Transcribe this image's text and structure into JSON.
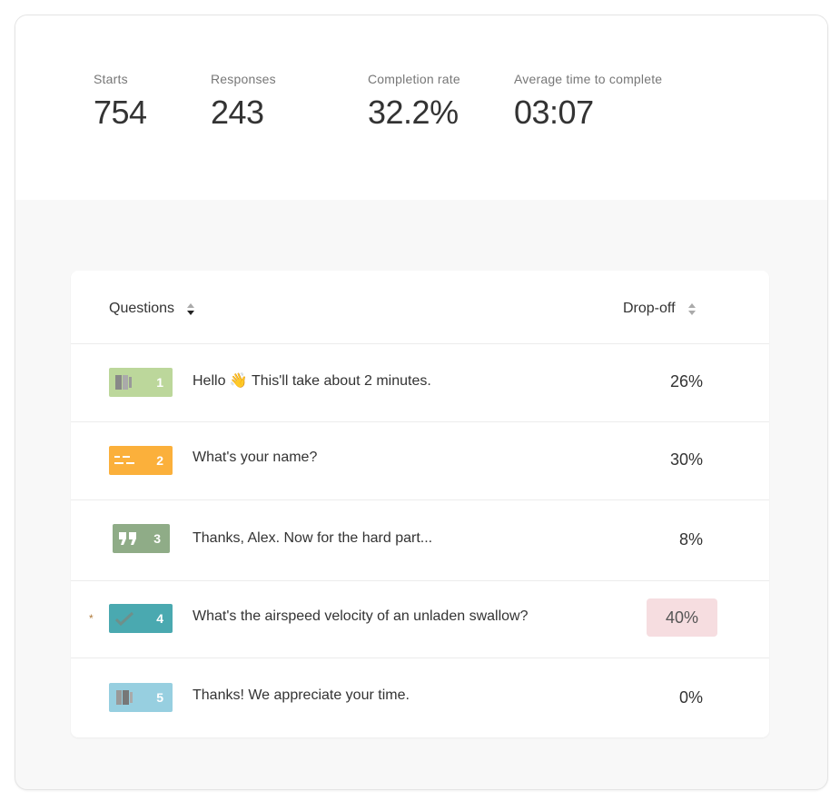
{
  "stats": {
    "starts": {
      "label": "Starts",
      "value": "754"
    },
    "responses": {
      "label": "Responses",
      "value": "243"
    },
    "completion_rate": {
      "label": "Completion rate",
      "value": "32.2%"
    },
    "avg_time": {
      "label": "Average time to complete",
      "value": "03:07"
    }
  },
  "table": {
    "col_questions": "Questions",
    "col_dropoff": "Drop-off",
    "rows": [
      {
        "num": "1",
        "text": "Hello 👋  This'll take about 2 minutes.",
        "dropoff": "26%",
        "badge_color": "#bcd79b",
        "icon": "welcome-screen-icon"
      },
      {
        "num": "2",
        "text": "What's your name?",
        "dropoff": "30%",
        "badge_color": "#fbb03b",
        "icon": "short-text-icon"
      },
      {
        "num": "3",
        "text": "Thanks, Alex. Now for the hard part...",
        "dropoff": "8%",
        "badge_color": "#8fac87",
        "icon": "quote-icon"
      },
      {
        "num": "4",
        "text": "What's the airspeed velocity of an unladen swallow?",
        "dropoff": "40%",
        "badge_color": "#4aa9b0",
        "icon": "checkmark-icon",
        "required_marker": "*",
        "highlight_color": "#f6dde0"
      },
      {
        "num": "5",
        "text": "Thanks! We appreciate your time.",
        "dropoff": "0%",
        "badge_color": "#97cfe0",
        "icon": "thank-you-screen-icon"
      }
    ]
  }
}
